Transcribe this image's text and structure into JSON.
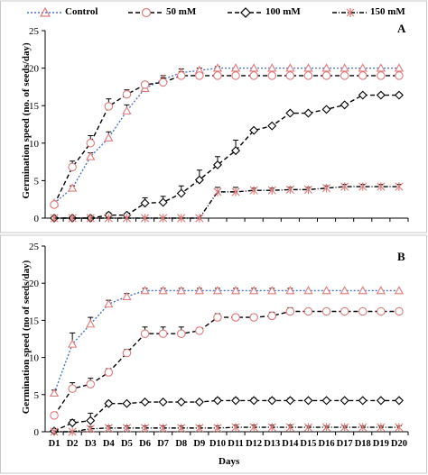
{
  "legend": {
    "entries": [
      "Control",
      "50 mM",
      "100 mM",
      "150 mM"
    ]
  },
  "colors": {
    "control": "#4a72c4",
    "control_marker": "#e07a7a",
    "mm50": "#000000",
    "mm50_marker": "#e07a7a",
    "mm100": "#000000",
    "mm100_marker": "#000000",
    "mm150": "#000000",
    "mm150_marker": "#e07a7a"
  },
  "chart_data": [
    {
      "type": "line",
      "panel": "A",
      "title": "",
      "xlabel": "",
      "ylabel": "Germination speed (no. of seeds/day)",
      "ylim": [
        0,
        25
      ],
      "yticks": [
        0,
        5,
        10,
        15,
        20,
        25
      ],
      "grid": false,
      "legend_position": "top",
      "categories": [
        "D1",
        "D2",
        "D3",
        "D4",
        "D5",
        "D6",
        "D7",
        "D8",
        "D9",
        "D10",
        "D11",
        "D12",
        "D13",
        "D14",
        "D15",
        "D16",
        "D17",
        "D18",
        "D19",
        "D20"
      ],
      "tick_labels_shown": false,
      "series": [
        {
          "name": "Control",
          "values": [
            2,
            4,
            8.2,
            10.7,
            14.3,
            17.3,
            18.5,
            19.4,
            19.7,
            20,
            20,
            20,
            20,
            20,
            20,
            20,
            20,
            20,
            20,
            20
          ],
          "errors": [
            0,
            0.3,
            0.5,
            0.8,
            0.8,
            0.6,
            0.5,
            0.5,
            0.3,
            0.2,
            0,
            0,
            0,
            0,
            0,
            0,
            0,
            0,
            0,
            0
          ]
        },
        {
          "name": "50 mM",
          "values": [
            1.8,
            6.8,
            10,
            14.9,
            16.5,
            17.8,
            18.1,
            19,
            19,
            19,
            19,
            19,
            19,
            19,
            19,
            19,
            19,
            19,
            19,
            19
          ],
          "errors": [
            0.3,
            0.8,
            1,
            1,
            0.6,
            0.4,
            0.6,
            0.5,
            0.3,
            0.2,
            0,
            0,
            0,
            0,
            0,
            0,
            0,
            0,
            0,
            0
          ]
        },
        {
          "name": "100 mM",
          "values": [
            0,
            0,
            0,
            0.4,
            0.4,
            2,
            2.1,
            3.3,
            5.1,
            7.1,
            9,
            11.7,
            12.3,
            14,
            14,
            14.5,
            15.1,
            16.4,
            16.4,
            16.4
          ],
          "errors": [
            0,
            0,
            0,
            0.3,
            0.2,
            0.7,
            0.8,
            1,
            1.3,
            1.1,
            1.4,
            0.2,
            0.2,
            0.2,
            0.2,
            0.2,
            0.2,
            0.2,
            0.2,
            0.2
          ]
        },
        {
          "name": "150 mM",
          "values": [
            0,
            0,
            0,
            0,
            0,
            0,
            0,
            0,
            0,
            3.5,
            3.5,
            3.7,
            3.7,
            3.8,
            3.8,
            4,
            4.2,
            4.2,
            4.2,
            4.2
          ],
          "errors": [
            0,
            0,
            0,
            0,
            0,
            0,
            0,
            0,
            0,
            0.6,
            0.6,
            0.3,
            0.3,
            0.3,
            0.3,
            0.3,
            0.3,
            0.3,
            0.3,
            0.3
          ]
        }
      ]
    },
    {
      "type": "line",
      "panel": "B",
      "title": "",
      "xlabel": "Days",
      "ylabel": "Germination speed (no of seeds/day)",
      "ylim": [
        0,
        25
      ],
      "yticks": [
        0,
        5,
        10,
        15,
        20,
        25
      ],
      "grid": false,
      "categories": [
        "D1",
        "D2",
        "D3",
        "D4",
        "D5",
        "D6",
        "D7",
        "D8",
        "D9",
        "D10",
        "D11",
        "D12",
        "D13",
        "D14",
        "D15",
        "D16",
        "D17",
        "D18",
        "D19",
        "D20"
      ],
      "tick_labels_shown": true,
      "series": [
        {
          "name": "Control",
          "values": [
            5.2,
            11.8,
            14.5,
            17.2,
            18.2,
            19,
            19,
            19,
            19,
            19,
            19,
            19,
            19,
            19,
            19,
            19,
            19,
            19,
            19,
            19
          ],
          "errors": [
            0.4,
            1.5,
            0.9,
            0.5,
            0.4,
            0.3,
            0.3,
            0.3,
            0.3,
            0.3,
            0.3,
            0.3,
            0.3,
            0.3,
            0,
            0,
            0,
            0,
            0,
            0
          ]
        },
        {
          "name": "50 mM",
          "values": [
            2.2,
            5.8,
            6.4,
            8,
            10.6,
            13.2,
            13.2,
            13.2,
            13.6,
            15.4,
            15.4,
            15.4,
            15.6,
            16.2,
            16.2,
            16.2,
            16.2,
            16.2,
            16.2,
            16.2
          ],
          "errors": [
            0.3,
            0.8,
            0.8,
            0.5,
            0.5,
            0.9,
            0.9,
            0.9,
            0.4,
            0.5,
            0.4,
            0.4,
            0.5,
            0.5,
            0.2,
            0.2,
            0.2,
            0.2,
            0.2,
            0.2
          ]
        },
        {
          "name": "100 mM",
          "values": [
            0.1,
            1.2,
            1.5,
            3.8,
            3.8,
            4,
            4,
            4,
            4,
            4.2,
            4.2,
            4.2,
            4.2,
            4.2,
            4.2,
            4.2,
            4.2,
            4.2,
            4.2,
            4.2
          ],
          "errors": [
            0,
            0.4,
            1,
            0.3,
            0.2,
            0.2,
            0.2,
            0.2,
            0.2,
            0.3,
            0.3,
            0.3,
            0.3,
            0.3,
            0.2,
            0.2,
            0.2,
            0.2,
            0.2,
            0.2
          ]
        },
        {
          "name": "150 mM",
          "values": [
            0,
            0,
            0.4,
            0.5,
            0.5,
            0.5,
            0.5,
            0.5,
            0.5,
            0.5,
            0.6,
            0.6,
            0.6,
            0.6,
            0.6,
            0.6,
            0.6,
            0.6,
            0.6,
            0.6
          ],
          "errors": [
            0,
            0,
            0.3,
            0.3,
            0.3,
            0.3,
            0.3,
            0.3,
            0.3,
            0.3,
            0.3,
            0.3,
            0.3,
            0.3,
            0.2,
            0.2,
            0.2,
            0.2,
            0.2,
            0.2
          ]
        }
      ]
    }
  ]
}
